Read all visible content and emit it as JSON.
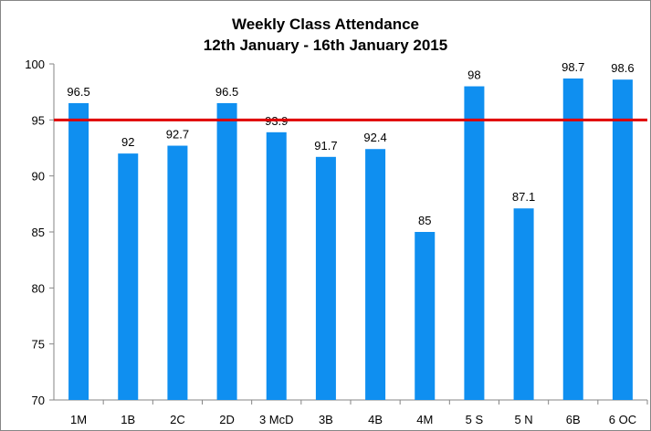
{
  "chart_data": {
    "type": "bar",
    "title": "Weekly Class Attendance",
    "subtitle": "12th January - 16th January 2015",
    "xlabel": "",
    "ylabel": "",
    "categories": [
      "1M",
      "1B",
      "2C",
      "2D",
      "3 McD",
      "3B",
      "4B",
      "4M",
      "5 S",
      "5 N",
      "6B",
      "6 OC"
    ],
    "values": [
      96.5,
      92,
      92.7,
      96.5,
      93.9,
      91.7,
      92.4,
      85,
      98,
      87.1,
      98.7,
      98.6
    ],
    "value_labels": [
      "96.5",
      "92",
      "92.7",
      "96.5",
      "93.9",
      "91.7",
      "92.4",
      "85",
      "98",
      "87.1",
      "98.7",
      "98.6"
    ],
    "ylim": [
      70,
      100
    ],
    "yticks": [
      "70",
      "75",
      "80",
      "85",
      "90",
      "95",
      "100"
    ],
    "reference_line": 95,
    "grid": false,
    "legend": "none",
    "colors": {
      "bar": "#0f8ff0",
      "reference_line": "#e00000",
      "axis": "#868686"
    }
  }
}
